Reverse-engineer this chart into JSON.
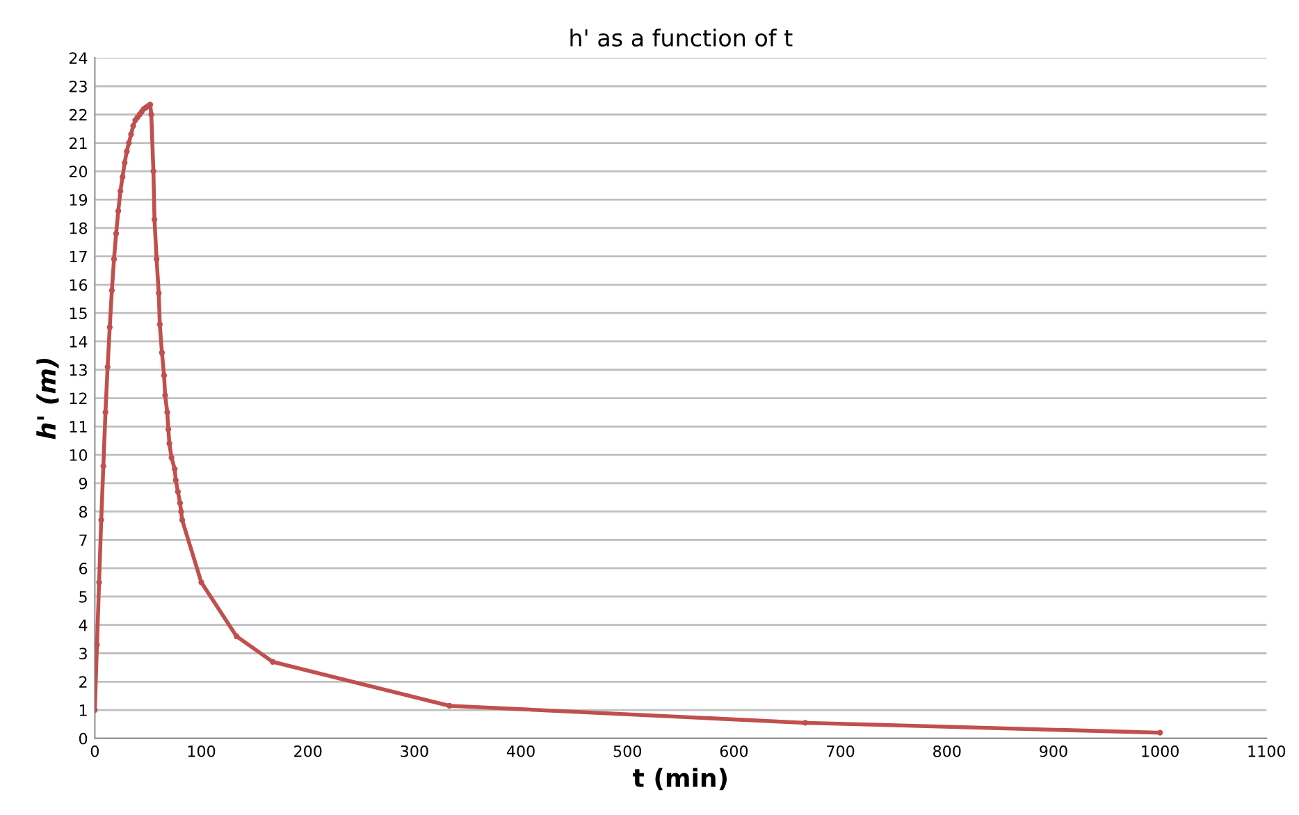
{
  "chart_data": {
    "type": "line",
    "title": "h' as a function of t",
    "xlabel": "t (min)",
    "ylabel": "h' (m)",
    "series": [
      {
        "color": "#c0504d",
        "x": [
          0,
          2,
          4,
          6,
          8,
          10,
          12,
          14,
          16,
          18,
          20,
          22,
          24,
          26,
          28,
          30,
          32,
          34,
          36,
          38,
          40,
          42,
          44,
          46,
          48,
          50,
          52,
          53,
          55,
          56,
          58,
          60,
          61,
          63,
          65,
          66,
          68,
          69,
          70,
          72,
          75,
          76,
          78,
          80,
          81,
          82,
          100,
          133,
          167,
          333,
          667,
          1000
        ],
        "values": [
          1,
          3.3,
          5.5,
          7.7,
          9.6,
          11.5,
          13.1,
          14.5,
          15.8,
          16.9,
          17.8,
          18.6,
          19.3,
          19.8,
          20.3,
          20.7,
          21.0,
          21.3,
          21.6,
          21.8,
          21.9,
          22.0,
          22.1,
          22.2,
          22.25,
          22.3,
          22.35,
          22.0,
          20.0,
          18.3,
          16.9,
          15.7,
          14.6,
          13.6,
          12.8,
          12.1,
          11.5,
          10.9,
          10.4,
          9.9,
          9.5,
          9.1,
          8.7,
          8.3,
          8.0,
          7.7,
          5.5,
          3.6,
          2.7,
          1.15,
          0.55,
          0.2
        ]
      }
    ],
    "xlim": [
      0,
      1100
    ],
    "xticks": [
      0,
      100,
      200,
      300,
      400,
      500,
      600,
      700,
      800,
      900,
      1000,
      1100
    ],
    "ylim": [
      0,
      24
    ],
    "yticks": [
      0,
      1,
      2,
      3,
      4,
      5,
      6,
      7,
      8,
      9,
      10,
      11,
      12,
      13,
      14,
      15,
      16,
      17,
      18,
      19,
      20,
      21,
      22,
      23,
      24
    ],
    "grid": "y",
    "marker": "circle",
    "line_style": "solid",
    "legend": false
  }
}
